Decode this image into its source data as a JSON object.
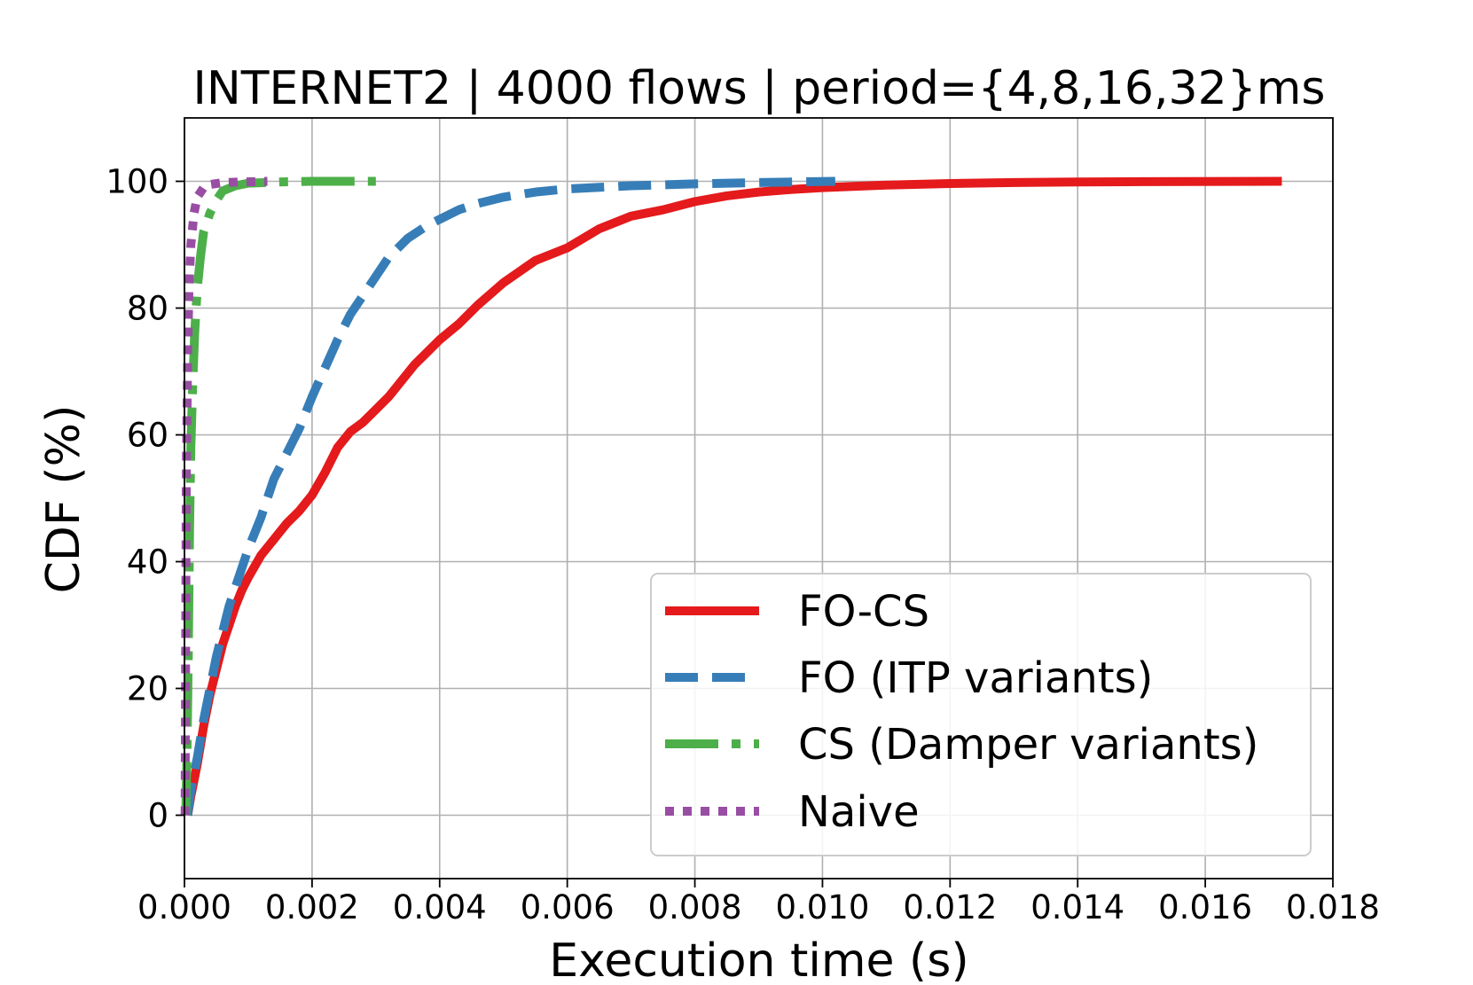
{
  "chart_data": {
    "type": "line",
    "title": "INTERNET2 | 4000 flows | period={4,8,16,32}ms",
    "xlabel": "Execution time (s)",
    "ylabel": "CDF (%)",
    "xlim": [
      0.0,
      0.018
    ],
    "ylim": [
      -10,
      110
    ],
    "xticks": [
      0.0,
      0.002,
      0.004,
      0.006,
      0.008,
      0.01,
      0.012,
      0.014,
      0.016,
      0.018
    ],
    "xtick_labels": [
      "0.000",
      "0.002",
      "0.004",
      "0.006",
      "0.008",
      "0.010",
      "0.012",
      "0.014",
      "0.016",
      "0.018"
    ],
    "yticks": [
      0,
      20,
      40,
      60,
      80,
      100
    ],
    "ytick_labels": [
      "0",
      "20",
      "40",
      "60",
      "80",
      "100"
    ],
    "grid": true,
    "legend_position": "lower-right",
    "series": [
      {
        "name": "FO-CS",
        "color": "#e41a1c",
        "style": "solid",
        "points": [
          [
            5e-05,
            0
          ],
          [
            0.0001,
            3
          ],
          [
            0.0002,
            8
          ],
          [
            0.0003,
            14
          ],
          [
            0.0004,
            19
          ],
          [
            0.0005,
            23
          ],
          [
            0.0006,
            27
          ],
          [
            0.0007,
            30
          ],
          [
            0.0008,
            33
          ],
          [
            0.0009,
            35.5
          ],
          [
            0.001,
            37.5
          ],
          [
            0.0012,
            41
          ],
          [
            0.0014,
            43.5
          ],
          [
            0.0016,
            46
          ],
          [
            0.0018,
            48
          ],
          [
            0.002,
            50.5
          ],
          [
            0.0022,
            54
          ],
          [
            0.0024,
            58
          ],
          [
            0.0026,
            60.5
          ],
          [
            0.0028,
            62
          ],
          [
            0.003,
            64
          ],
          [
            0.0032,
            66
          ],
          [
            0.0034,
            68.5
          ],
          [
            0.0036,
            71
          ],
          [
            0.0038,
            73
          ],
          [
            0.004,
            75
          ],
          [
            0.0043,
            77.5
          ],
          [
            0.0046,
            80.5
          ],
          [
            0.005,
            84
          ],
          [
            0.0055,
            87.5
          ],
          [
            0.006,
            89.5
          ],
          [
            0.0065,
            92.5
          ],
          [
            0.007,
            94.5
          ],
          [
            0.0075,
            95.5
          ],
          [
            0.008,
            96.8
          ],
          [
            0.0085,
            97.7
          ],
          [
            0.009,
            98.3
          ],
          [
            0.0095,
            98.7
          ],
          [
            0.01,
            99.0
          ],
          [
            0.011,
            99.4
          ],
          [
            0.012,
            99.65
          ],
          [
            0.013,
            99.8
          ],
          [
            0.014,
            99.9
          ],
          [
            0.015,
            99.95
          ],
          [
            0.0172,
            100
          ]
        ]
      },
      {
        "name": "FO (ITP variants)",
        "color": "#377eb8",
        "style": "dashed",
        "points": [
          [
            5e-05,
            0
          ],
          [
            0.0001,
            4
          ],
          [
            0.0002,
            9
          ],
          [
            0.0003,
            15
          ],
          [
            0.0004,
            20
          ],
          [
            0.0005,
            25
          ],
          [
            0.0006,
            29
          ],
          [
            0.0007,
            33
          ],
          [
            0.0008,
            36
          ],
          [
            0.001,
            42
          ],
          [
            0.0012,
            47
          ],
          [
            0.0014,
            53
          ],
          [
            0.0016,
            57
          ],
          [
            0.0018,
            61
          ],
          [
            0.002,
            66
          ],
          [
            0.0022,
            70.5
          ],
          [
            0.0024,
            75
          ],
          [
            0.0026,
            79
          ],
          [
            0.0028,
            82
          ],
          [
            0.003,
            85
          ],
          [
            0.0032,
            88
          ],
          [
            0.0035,
            91
          ],
          [
            0.0038,
            93
          ],
          [
            0.004,
            94
          ],
          [
            0.0043,
            95.5
          ],
          [
            0.0046,
            96.5
          ],
          [
            0.005,
            97.5
          ],
          [
            0.0055,
            98.3
          ],
          [
            0.006,
            98.8
          ],
          [
            0.007,
            99.3
          ],
          [
            0.008,
            99.6
          ],
          [
            0.009,
            99.8
          ],
          [
            0.0102,
            100
          ]
        ]
      },
      {
        "name": "CS (Damper variants)",
        "color": "#4daf4a",
        "style": "dashdot",
        "points": [
          [
            2e-05,
            0
          ],
          [
            4e-05,
            10
          ],
          [
            6e-05,
            25
          ],
          [
            8e-05,
            45
          ],
          [
            0.0001,
            58
          ],
          [
            0.00013,
            68
          ],
          [
            0.00016,
            76
          ],
          [
            0.0002,
            83
          ],
          [
            0.00025,
            88
          ],
          [
            0.0003,
            92
          ],
          [
            0.0004,
            95
          ],
          [
            0.0005,
            97
          ],
          [
            0.0006,
            98.5
          ],
          [
            0.0008,
            99.3
          ],
          [
            0.001,
            99.7
          ],
          [
            0.0015,
            99.9
          ],
          [
            0.002,
            100
          ],
          [
            0.003,
            100
          ]
        ]
      },
      {
        "name": "Naive",
        "color": "#984ea3",
        "style": "dotted",
        "points": [
          [
            1e-05,
            0
          ],
          [
            2e-05,
            30
          ],
          [
            3e-05,
            55
          ],
          [
            5e-05,
            72
          ],
          [
            7e-05,
            83
          ],
          [
            0.0001,
            90
          ],
          [
            0.00015,
            95
          ],
          [
            0.0002,
            97.5
          ],
          [
            0.0003,
            99
          ],
          [
            0.0004,
            99.5
          ],
          [
            0.0006,
            99.8
          ],
          [
            0.0009,
            99.9
          ],
          [
            0.0013,
            100
          ]
        ]
      }
    ]
  }
}
